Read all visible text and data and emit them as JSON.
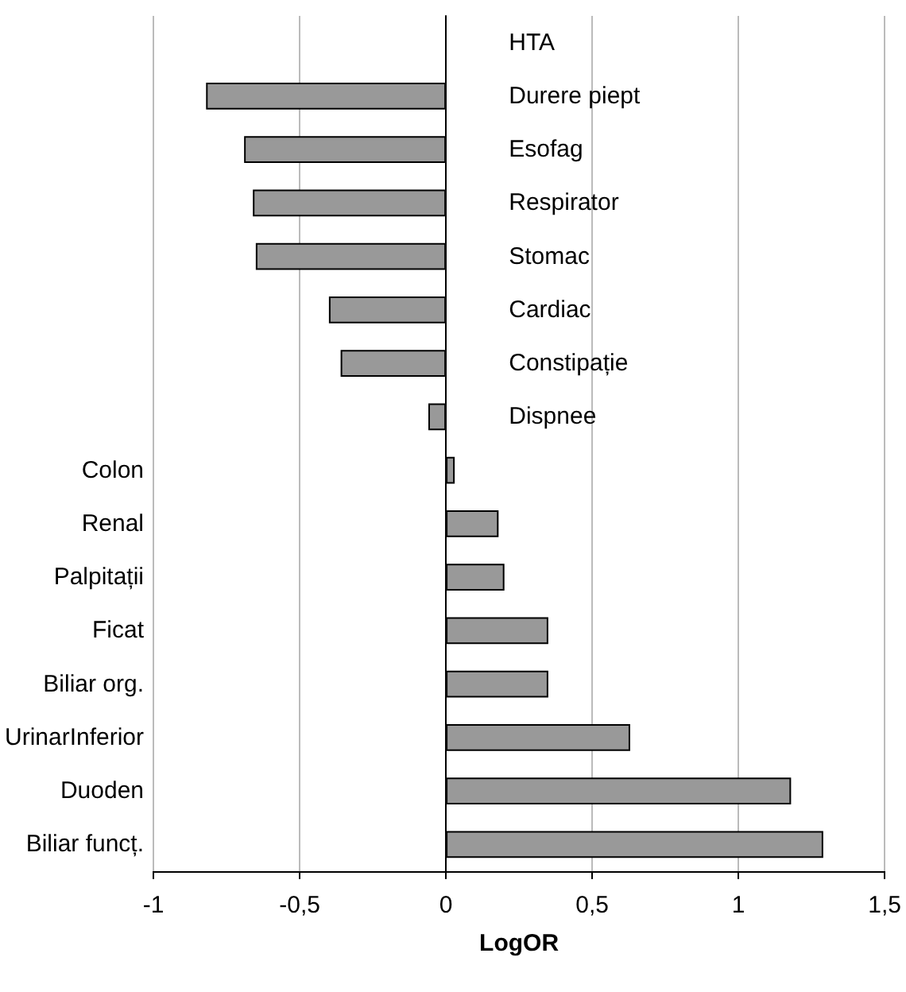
{
  "chart_data": {
    "type": "bar",
    "orientation": "horizontal",
    "xlabel": "LogOR",
    "categories": [
      "HTA",
      "Durere piept",
      "Esofag",
      "Respirator",
      "Stomac",
      "Cardiac",
      "Constipație",
      "Dispnee",
      "Colon",
      "Renal",
      "Palpitații",
      "Ficat",
      "Biliar org.",
      "UrinarInferior",
      "Duoden",
      "Biliar funcț."
    ],
    "values": [
      null,
      -0.82,
      -0.69,
      -0.66,
      -0.65,
      -0.4,
      -0.36,
      -0.06,
      0.03,
      0.18,
      0.2,
      0.35,
      0.35,
      0.63,
      1.18,
      1.29
    ],
    "color": "#999999",
    "xlim": [
      -1,
      1.5
    ],
    "xticks": [
      {
        "value": -1,
        "label": "-1"
      },
      {
        "value": -0.5,
        "label": "-0,5"
      },
      0,
      {
        "value": 0.5,
        "label": "0,5"
      },
      1,
      {
        "value": 1.5,
        "label": "1,5"
      }
    ],
    "grid": "x"
  }
}
